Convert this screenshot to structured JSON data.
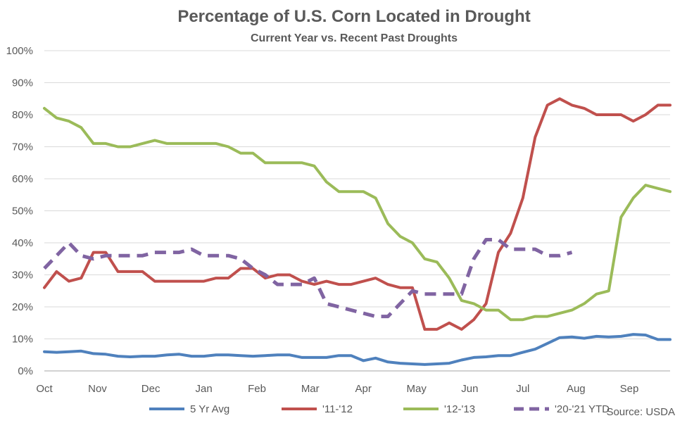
{
  "chart_data": {
    "type": "line",
    "title": "Percentage of U.S. Corn Located in Drought",
    "subtitle": "Current Year vs. Recent Past Droughts",
    "source": "Source: USDA",
    "xlabel": "",
    "ylabel": "",
    "ylim": [
      0,
      100
    ],
    "xlim": [
      0,
      51
    ],
    "y_ticks": [
      "0%",
      "10%",
      "20%",
      "30%",
      "40%",
      "50%",
      "60%",
      "70%",
      "80%",
      "90%",
      "100%"
    ],
    "x_ticks": [
      "Oct",
      "Nov",
      "Dec",
      "Jan",
      "Feb",
      "Mar",
      "Apr",
      "May",
      "Jun",
      "Jul",
      "Aug",
      "Sep"
    ],
    "x_tick_weeks": [
      0,
      4.33,
      8.67,
      13,
      17.33,
      21.67,
      26,
      30.33,
      34.67,
      39,
      43.33,
      47.67
    ],
    "grid": true,
    "legend_position": "bottom",
    "series": [
      {
        "name": "5 Yr Avg",
        "color": "#4f81bd",
        "style": "solid",
        "x": [
          0,
          1,
          2,
          3,
          4,
          5,
          6,
          7,
          8,
          9,
          10,
          11,
          12,
          13,
          14,
          15,
          16,
          17,
          18,
          19,
          20,
          21,
          22,
          23,
          24,
          25,
          26,
          27,
          28,
          29,
          30,
          31,
          32,
          33,
          34,
          35,
          36,
          37,
          38,
          39,
          40,
          41,
          42,
          43,
          44,
          45,
          46,
          47,
          48,
          49,
          50,
          51
        ],
        "values": [
          6,
          5.8,
          6,
          6.2,
          5.4,
          5.2,
          4.6,
          4.4,
          4.6,
          4.6,
          5,
          5.2,
          4.6,
          4.6,
          5,
          5,
          4.8,
          4.6,
          4.8,
          5,
          5,
          4.2,
          4.2,
          4.2,
          4.8,
          4.8,
          3.2,
          4,
          2.8,
          2.4,
          2.2,
          2,
          2.2,
          2.4,
          3.4,
          4.2,
          4.4,
          4.8,
          4.8,
          5.8,
          6.8,
          8.6,
          10.4,
          10.6,
          10.2,
          10.8,
          10.6,
          10.8,
          11.4,
          11.2,
          9.8,
          9.8
        ]
      },
      {
        "name": "'11-'12",
        "color": "#c0504d",
        "style": "solid",
        "x": [
          0,
          1,
          2,
          3,
          4,
          5,
          6,
          7,
          8,
          9,
          10,
          11,
          12,
          13,
          14,
          15,
          16,
          17,
          18,
          19,
          20,
          21,
          22,
          23,
          24,
          25,
          26,
          27,
          28,
          29,
          30,
          31,
          32,
          33,
          34,
          35,
          36,
          37,
          38,
          39,
          40,
          41,
          42,
          43,
          44,
          45,
          46,
          47,
          48,
          49,
          50,
          51
        ],
        "values": [
          26,
          31,
          28,
          29,
          37,
          37,
          31,
          31,
          31,
          28,
          28,
          28,
          28,
          28,
          29,
          29,
          32,
          32,
          29,
          30,
          30,
          28,
          27,
          28,
          27,
          27,
          28,
          29,
          27,
          26,
          26,
          13,
          13,
          15,
          13,
          16,
          21,
          37,
          43,
          54,
          73,
          83,
          85,
          83,
          82,
          80,
          80,
          80,
          78,
          80,
          83,
          83
        ]
      },
      {
        "name": "'12-'13",
        "color": "#9bbb59",
        "style": "solid",
        "x": [
          0,
          1,
          2,
          3,
          4,
          5,
          6,
          7,
          8,
          9,
          10,
          11,
          12,
          13,
          14,
          15,
          16,
          17,
          18,
          19,
          20,
          21,
          22,
          23,
          24,
          25,
          26,
          27,
          28,
          29,
          30,
          31,
          32,
          33,
          34,
          35,
          36,
          37,
          38,
          39,
          40,
          41,
          42,
          43,
          44,
          45,
          46,
          47,
          48,
          49,
          50,
          51
        ],
        "values": [
          82,
          79,
          78,
          76,
          71,
          71,
          70,
          70,
          71,
          72,
          71,
          71,
          71,
          71,
          71,
          70,
          68,
          68,
          65,
          65,
          65,
          65,
          64,
          59,
          56,
          56,
          56,
          54,
          46,
          42,
          40,
          35,
          34,
          29,
          22,
          21,
          19,
          19,
          16,
          16,
          17,
          17,
          18,
          19,
          21,
          24,
          25,
          48,
          54,
          58,
          57,
          56
        ]
      },
      {
        "name": "'20-'21 YTD",
        "color": "#8064a2",
        "style": "dashed",
        "x": [
          0,
          1,
          2,
          3,
          4,
          5,
          6,
          7,
          8,
          9,
          10,
          11,
          12,
          13,
          14,
          15,
          16,
          17,
          18,
          19,
          20,
          21,
          22,
          23,
          24,
          25,
          26,
          27,
          28,
          29,
          30,
          31,
          32,
          33,
          34,
          35,
          36,
          37,
          38,
          39,
          40,
          41,
          42,
          43
        ],
        "values": [
          32,
          36,
          40,
          36,
          35,
          36,
          36,
          36,
          36,
          37,
          37,
          37,
          38,
          36,
          36,
          36,
          35,
          32,
          30,
          27,
          27,
          27,
          29,
          21,
          20,
          19,
          18,
          17,
          17,
          21,
          25,
          24,
          24,
          24,
          24,
          35,
          41,
          41,
          38,
          38,
          38,
          36,
          36,
          37
        ]
      }
    ]
  }
}
